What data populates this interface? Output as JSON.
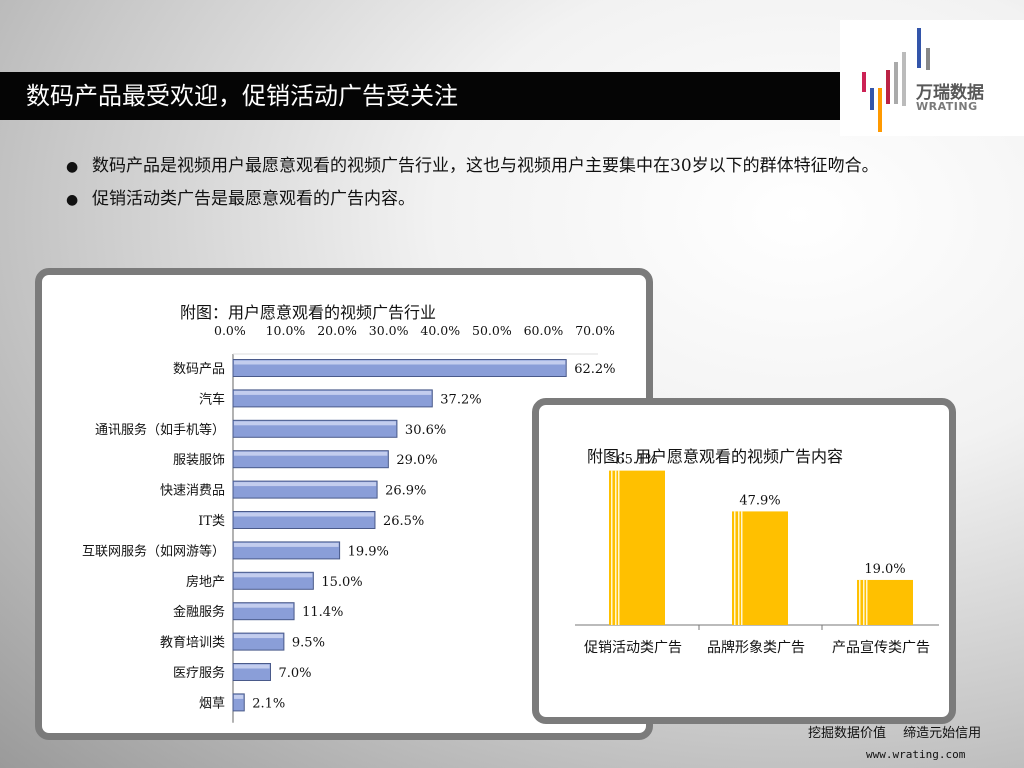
{
  "slide": {
    "title": "数码产品最受欢迎，促销活动广告受关注",
    "bullets": [
      {
        "symbol": "●",
        "text": "数码产品是视频用户最愿意观看的视频广告行业，这也与视频用户主要集中在30岁以下的群体特征吻合。"
      },
      {
        "symbol": "●",
        "text": "促销活动类广告是最愿意观看的广告内容。"
      }
    ]
  },
  "logo": {
    "name": "万瑞数据",
    "subtitle": "WRATING"
  },
  "footer": {
    "slogan": "挖掘数据价值　 缔造元始信用",
    "url": "www.wrating.com"
  },
  "chart_data": [
    {
      "type": "bar",
      "orientation": "horizontal",
      "title": "附图：用户愿意观看的视频广告行业",
      "axis_ticks": [
        "0.0%",
        "10.0%",
        "20.0%",
        "30.0%",
        "40.0%",
        "50.0%",
        "60.0%",
        "70.0%"
      ],
      "xlim": [
        0,
        70
      ],
      "axis_position": "top",
      "categories": [
        "数码产品",
        "汽车",
        "通讯服务（如手机等）",
        "服装服饰",
        "快速消费品",
        "IT类",
        "互联网服务（如网游等）",
        "房地产",
        "金融服务",
        "教育培训类",
        "医疗服务",
        "烟草"
      ],
      "values": [
        62.2,
        37.2,
        30.6,
        29.0,
        26.9,
        26.5,
        19.9,
        15.0,
        11.4,
        9.5,
        7.0,
        2.1
      ],
      "labels": [
        "62.2%",
        "37.2%",
        "30.6%",
        "29.0%",
        "26.9%",
        "26.5%",
        "19.9%",
        "15.0%",
        "11.4%",
        "9.5%",
        "7.0%",
        "2.1%"
      ],
      "bar_color": "#8a9ed8",
      "grid": false
    },
    {
      "type": "bar",
      "orientation": "vertical",
      "title": "附图：用户愿意观看的视频广告内容",
      "categories": [
        "促销活动类广告",
        "品牌形象类广告",
        "产品宣传类广告"
      ],
      "values": [
        65.1,
        47.9,
        19.0
      ],
      "labels": [
        "65.1%",
        "47.9%",
        "19.0%"
      ],
      "ylim": [
        0,
        70
      ],
      "bar_color": "#ffc000",
      "grid": false
    }
  ]
}
